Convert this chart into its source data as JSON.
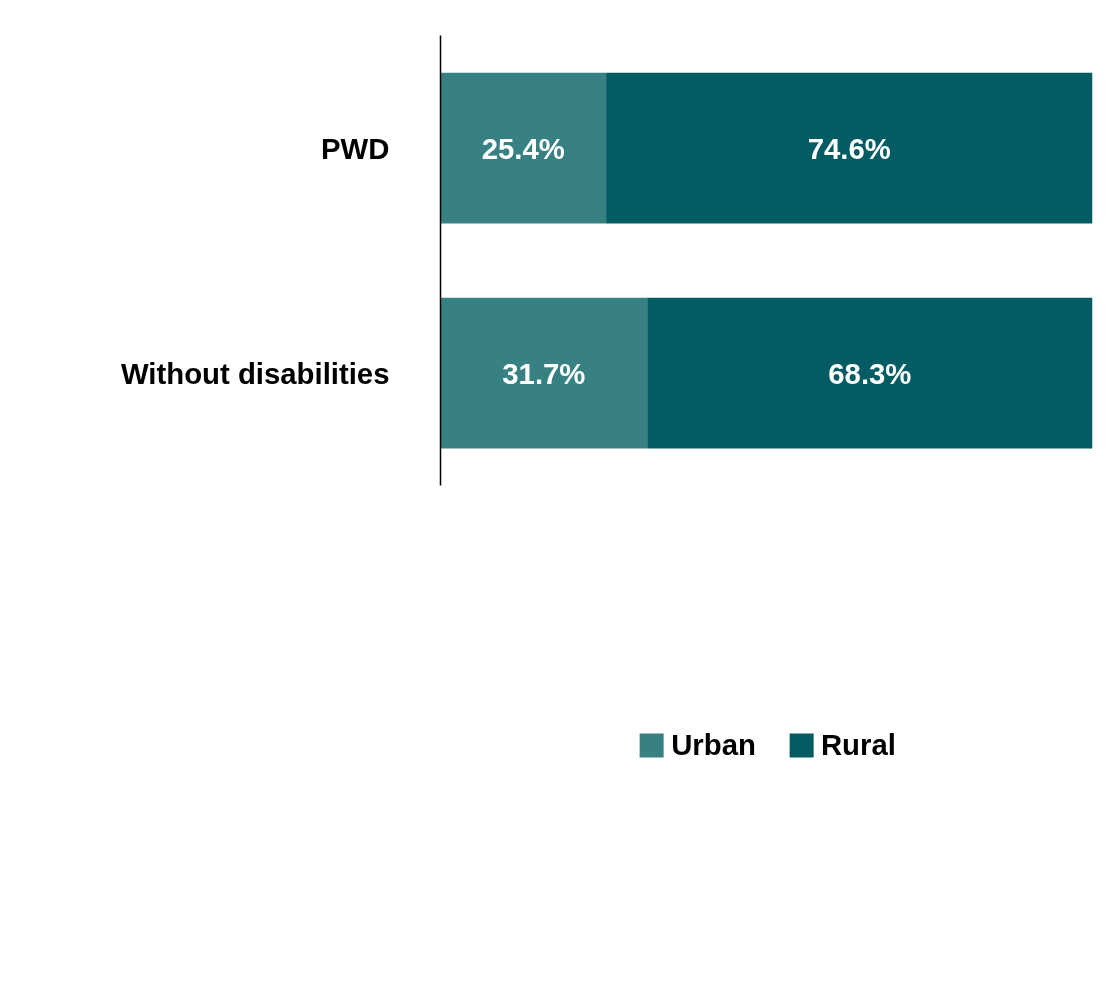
{
  "chart_data": {
    "type": "bar",
    "orientation": "horizontal",
    "stacked": true,
    "legend": "bottom",
    "grid": false,
    "tick_labels": "y",
    "categories": [
      "PWD",
      "Without disabilities"
    ],
    "series": [
      {
        "name": "Urban",
        "color": "#378183",
        "values": [
          25.4,
          31.7
        ],
        "value_labels": [
          "25.4%",
          "31.7%"
        ]
      },
      {
        "name": "Rural",
        "color": "#035c63",
        "values": [
          74.6,
          68.3
        ],
        "value_labels": [
          "74.6%",
          "68.3%"
        ]
      }
    ]
  }
}
